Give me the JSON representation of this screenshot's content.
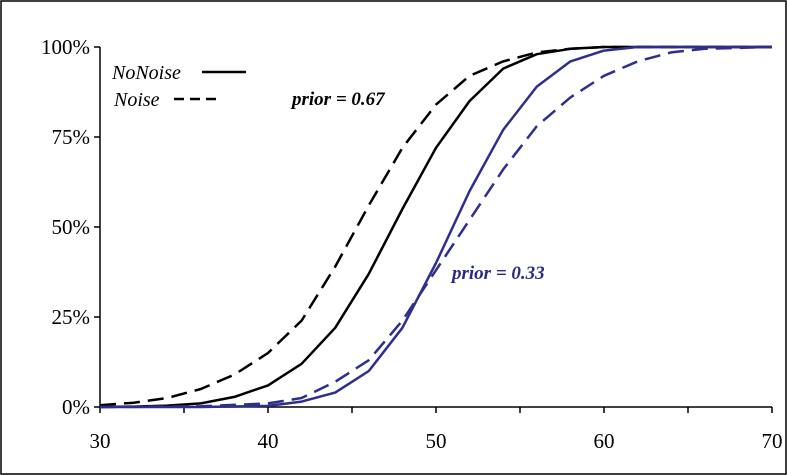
{
  "chart_data": {
    "type": "line",
    "title": "",
    "xlabel": "",
    "ylabel": "",
    "xlim": [
      30,
      70
    ],
    "ylim": [
      0,
      1
    ],
    "x_ticks": [
      30,
      40,
      50,
      60,
      70
    ],
    "x_tick_labels": [
      "30",
      "40",
      "50",
      "60",
      "70"
    ],
    "y_ticks": [
      0,
      0.25,
      0.5,
      0.75,
      1.0
    ],
    "y_tick_labels": [
      "0%",
      "25%",
      "50%",
      "75%",
      "100%"
    ],
    "grid": false,
    "legend": {
      "placement": "top-left",
      "entries": [
        {
          "label": "NoNoise",
          "dash": "solid"
        },
        {
          "label": "Noise",
          "dash": "dashed"
        }
      ]
    },
    "annotations": [
      {
        "text": "prior = 0.67",
        "color": "#000000"
      },
      {
        "text": "prior = 0.33",
        "color": "#2a2a86"
      }
    ],
    "series": [
      {
        "group": "prior = 0.67",
        "line": "solid",
        "color": "#000000",
        "points": [
          [
            30,
            0
          ],
          [
            32,
            0.001
          ],
          [
            34,
            0.004
          ],
          [
            36,
            0.01
          ],
          [
            38,
            0.028
          ],
          [
            40,
            0.06
          ],
          [
            42,
            0.12
          ],
          [
            44,
            0.22
          ],
          [
            46,
            0.37
          ],
          [
            48,
            0.55
          ],
          [
            50,
            0.72
          ],
          [
            52,
            0.85
          ],
          [
            54,
            0.94
          ],
          [
            56,
            0.98
          ],
          [
            58,
            0.995
          ],
          [
            60,
            1.0
          ],
          [
            62,
            1.0
          ],
          [
            65,
            1.0
          ],
          [
            70,
            1.0
          ]
        ]
      },
      {
        "group": "prior = 0.67",
        "line": "dashed",
        "color": "#000000",
        "points": [
          [
            30,
            0.005
          ],
          [
            32,
            0.012
          ],
          [
            34,
            0.025
          ],
          [
            36,
            0.05
          ],
          [
            38,
            0.09
          ],
          [
            40,
            0.15
          ],
          [
            42,
            0.24
          ],
          [
            44,
            0.39
          ],
          [
            46,
            0.56
          ],
          [
            48,
            0.72
          ],
          [
            50,
            0.84
          ],
          [
            52,
            0.92
          ],
          [
            54,
            0.96
          ],
          [
            56,
            0.985
          ],
          [
            58,
            0.995
          ],
          [
            60,
            1.0
          ],
          [
            62,
            1.0
          ],
          [
            65,
            1.0
          ],
          [
            70,
            1.0
          ]
        ]
      },
      {
        "group": "prior = 0.33",
        "line": "solid",
        "color": "#2e2e8c",
        "points": [
          [
            30,
            0
          ],
          [
            36,
            0
          ],
          [
            40,
            0.003
          ],
          [
            42,
            0.015
          ],
          [
            44,
            0.04
          ],
          [
            46,
            0.1
          ],
          [
            48,
            0.22
          ],
          [
            50,
            0.4
          ],
          [
            52,
            0.6
          ],
          [
            54,
            0.77
          ],
          [
            56,
            0.89
          ],
          [
            58,
            0.96
          ],
          [
            60,
            0.99
          ],
          [
            62,
            1.0
          ],
          [
            65,
            1.0
          ],
          [
            70,
            1.0
          ]
        ]
      },
      {
        "group": "prior = 0.33",
        "line": "dashed",
        "color": "#2e2e8c",
        "points": [
          [
            30,
            0
          ],
          [
            36,
            0.002
          ],
          [
            40,
            0.01
          ],
          [
            42,
            0.025
          ],
          [
            44,
            0.07
          ],
          [
            46,
            0.13
          ],
          [
            48,
            0.24
          ],
          [
            50,
            0.38
          ],
          [
            52,
            0.52
          ],
          [
            54,
            0.66
          ],
          [
            56,
            0.78
          ],
          [
            58,
            0.86
          ],
          [
            60,
            0.92
          ],
          [
            62,
            0.96
          ],
          [
            64,
            0.985
          ],
          [
            66,
            0.995
          ],
          [
            70,
            1.0
          ]
        ]
      }
    ]
  }
}
